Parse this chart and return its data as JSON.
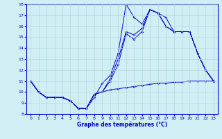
{
  "title": "Graphe des températures (°C)",
  "background_color": "#d0eef4",
  "line_color": "#0000cc",
  "xlim": [
    -0.5,
    23.5
  ],
  "ylim": [
    8,
    18
  ],
  "xticks": [
    0,
    1,
    2,
    3,
    4,
    5,
    6,
    7,
    8,
    9,
    10,
    11,
    12,
    13,
    14,
    15,
    16,
    17,
    18,
    19,
    20,
    21,
    22,
    23
  ],
  "yticks": [
    8,
    9,
    10,
    11,
    12,
    13,
    14,
    15,
    16,
    17,
    18
  ],
  "grid_color": "#b0d8e0",
  "lines": [
    {
      "x": [
        0,
        1,
        2,
        3,
        4,
        5,
        6,
        7,
        8,
        9,
        10,
        11,
        12,
        13,
        14,
        15,
        16,
        17,
        18,
        19,
        20,
        21,
        22,
        23
      ],
      "y": [
        11,
        10,
        9.5,
        9.5,
        9.5,
        9.2,
        8.5,
        8.5,
        9.8,
        10,
        10.2,
        10.3,
        10.4,
        10.5,
        10.6,
        10.7,
        10.8,
        10.8,
        10.9,
        10.9,
        11.0,
        11.0,
        11.0,
        11.0
      ]
    },
    {
      "x": [
        0,
        1,
        2,
        3,
        4,
        5,
        6,
        7,
        8,
        9,
        10,
        11,
        12,
        13,
        14,
        15,
        16,
        17,
        18,
        19,
        20,
        21,
        22,
        23
      ],
      "y": [
        11,
        10,
        9.5,
        9.5,
        9.5,
        9.2,
        8.5,
        8.5,
        9.8,
        10,
        11,
        12.5,
        15.3,
        14.8,
        15.5,
        17.5,
        17.2,
        16.0,
        15.5,
        15.5,
        15.5,
        13.5,
        12.0,
        11.0
      ]
    },
    {
      "x": [
        0,
        1,
        2,
        3,
        4,
        5,
        6,
        7,
        8,
        9,
        10,
        11,
        12,
        13,
        14,
        15,
        16,
        17,
        18,
        19,
        20,
        21,
        22,
        23
      ],
      "y": [
        11,
        10,
        9.5,
        9.5,
        9.5,
        9.2,
        8.5,
        8.5,
        9.8,
        10,
        11.2,
        13.0,
        15.5,
        15.2,
        15.8,
        17.5,
        17.2,
        16.0,
        15.5,
        15.5,
        15.5,
        13.5,
        12.0,
        11.0
      ]
    },
    {
      "x": [
        0,
        1,
        2,
        3,
        4,
        5,
        6,
        7,
        8,
        9,
        10,
        11,
        12,
        13,
        14,
        15,
        16,
        17,
        18,
        19,
        20,
        21,
        22,
        23
      ],
      "y": [
        11,
        10,
        9.5,
        9.5,
        9.5,
        9.2,
        8.5,
        8.5,
        9.5,
        10.8,
        11.5,
        13.5,
        18.0,
        16.8,
        16.2,
        17.5,
        17.2,
        16.8,
        15.5,
        15.5,
        15.5,
        13.5,
        12.0,
        11.0
      ]
    }
  ]
}
